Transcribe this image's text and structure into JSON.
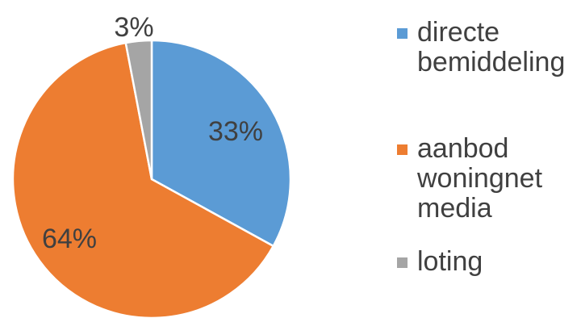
{
  "chart_data": {
    "type": "pie",
    "title": "",
    "slices": [
      {
        "label": "directe\nbemiddeling",
        "value": 33,
        "data_label": "33%",
        "color": "#5B9BD5"
      },
      {
        "label": "aanbod\nwoningnet\nmedia",
        "value": 64,
        "data_label": "64%",
        "color": "#ED7D31"
      },
      {
        "label": "loting",
        "value": 3,
        "data_label": "3%",
        "color": "#A5A5A5"
      }
    ],
    "start_angle_deg": 0,
    "direction": "clockwise",
    "legend_position": "right"
  }
}
